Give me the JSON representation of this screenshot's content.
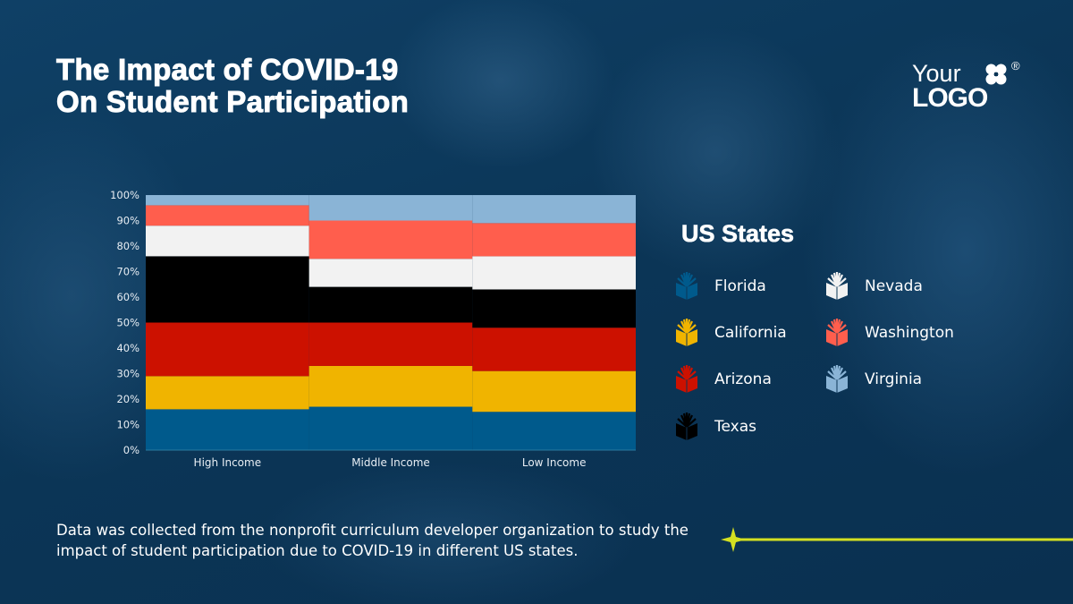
{
  "header": {
    "title_line1": "The Impact of COVID-19",
    "title_line2": "On Student Participation"
  },
  "logo": {
    "line1": "Your",
    "line2": "LOGO",
    "reg": "®"
  },
  "legend": {
    "title": "US States"
  },
  "footer": {
    "text": "Data was collected from the nonprofit curriculum developer organization to study the impact of student participation due to COVID-19 in different US states."
  },
  "colors": {
    "accent": "#d4e021",
    "background": "#0b3556"
  },
  "chart_data": {
    "type": "bar",
    "stacked": true,
    "normalized": true,
    "categories": [
      "High Income",
      "Middle Income",
      "Low Income"
    ],
    "ylim": [
      0,
      100
    ],
    "yticks": [
      "0%",
      "10%",
      "20%",
      "30%",
      "40%",
      "50%",
      "60%",
      "70%",
      "80%",
      "90%",
      "100%"
    ],
    "grid": false,
    "legend_placement": "right",
    "series": [
      {
        "name": "Florida",
        "color": "#005a8c",
        "values": [
          16,
          17,
          15
        ]
      },
      {
        "name": "California",
        "color": "#f0b400",
        "values": [
          13,
          16,
          16
        ]
      },
      {
        "name": "Arizona",
        "color": "#cc1100",
        "values": [
          21,
          17,
          17
        ]
      },
      {
        "name": "Texas",
        "color": "#000000",
        "values": [
          26,
          14,
          15
        ]
      },
      {
        "name": "Nevada",
        "color": "#f2f2f2",
        "values": [
          12,
          11,
          13
        ]
      },
      {
        "name": "Washington",
        "color": "#ff5e4d",
        "values": [
          8,
          15,
          13
        ]
      },
      {
        "name": "Virginia",
        "color": "#8ab4d6",
        "values": [
          4,
          10,
          11
        ]
      }
    ]
  }
}
